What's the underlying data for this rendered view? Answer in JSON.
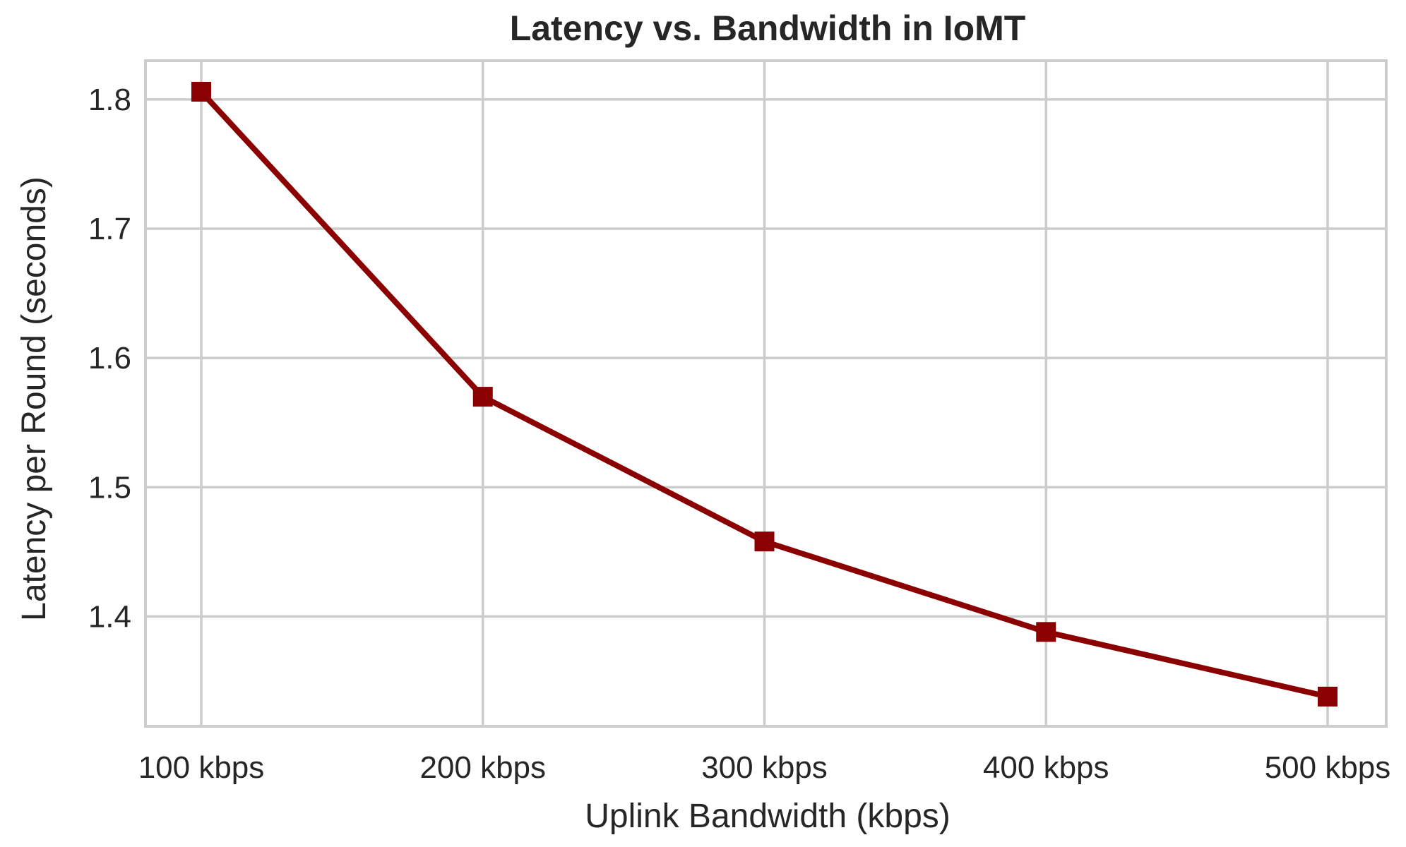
{
  "chart_data": {
    "type": "line",
    "title": "Latency vs. Bandwidth in IoMT",
    "xlabel": "Uplink Bandwidth (kbps)",
    "ylabel": "Latency per Round (seconds)",
    "categories": [
      "100 kbps",
      "200 kbps",
      "300 kbps",
      "400 kbps",
      "500 kbps"
    ],
    "series": [
      {
        "values": [
          1.806,
          1.57,
          1.458,
          1.388,
          1.338
        ],
        "color": "#8b0000",
        "marker": "square"
      }
    ],
    "ylim": [
      1.315,
      1.83
    ],
    "yticks": [
      1.4,
      1.5,
      1.6,
      1.7,
      1.8
    ],
    "ytick_labels": [
      "1.4",
      "1.5",
      "1.6",
      "1.7",
      "1.8"
    ],
    "grid": true,
    "legend": "none"
  }
}
